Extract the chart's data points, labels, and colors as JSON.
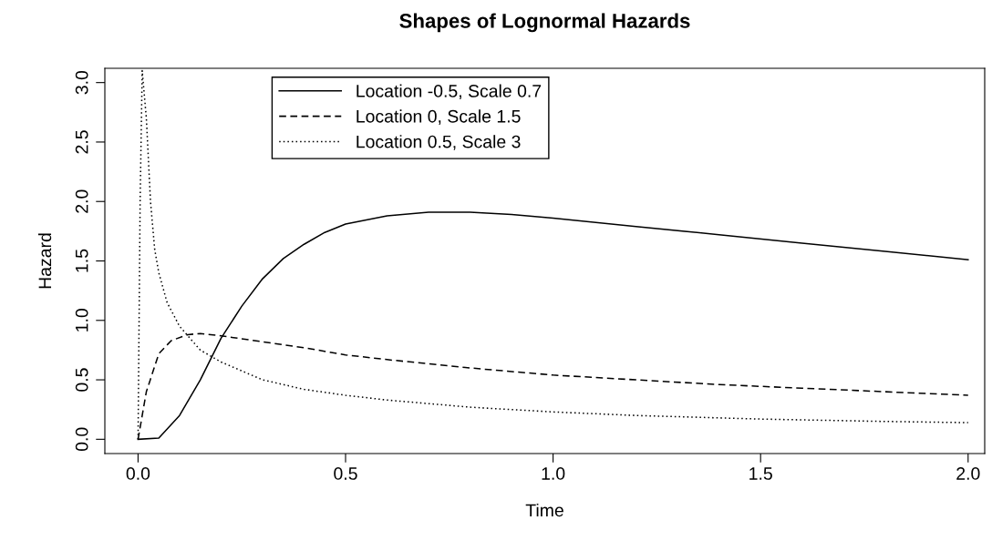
{
  "chart_data": {
    "type": "line",
    "title": "Shapes of Lognormal Hazards",
    "xlabel": "Time",
    "ylabel": "Hazard",
    "xlim": [
      -0.08,
      2.04
    ],
    "ylim": [
      -0.12,
      3.12
    ],
    "xticks": [
      {
        "value": 0,
        "label": "0.0"
      },
      0.5,
      {
        "value": 1,
        "label": "1.0"
      },
      1.5,
      {
        "value": 2,
        "label": "2.0"
      }
    ],
    "yticks": [
      {
        "value": 0,
        "label": "0.0"
      },
      0.5,
      {
        "value": 1,
        "label": "1.0"
      },
      1.5,
      {
        "value": 2,
        "label": "2.0"
      },
      2.5,
      {
        "value": 3,
        "label": "3.0"
      }
    ],
    "grid": false,
    "legend": "top left",
    "marker": "none",
    "series": [
      {
        "name": "Location -0.5, Scale 0.7",
        "color": "#000000",
        "line_style": "solid",
        "x": [
          0,
          0.05,
          0.1,
          0.15,
          0.2,
          0.25,
          0.3,
          0.35,
          0.4,
          0.45,
          0.5,
          0.6,
          0.7,
          0.8,
          0.9,
          1.0,
          1.2,
          1.4,
          1.6,
          1.8,
          2.0
        ],
        "values": [
          0,
          0.01,
          0.2,
          0.5,
          0.85,
          1.12,
          1.35,
          1.52,
          1.64,
          1.74,
          1.81,
          1.88,
          1.91,
          1.91,
          1.89,
          1.86,
          1.79,
          1.72,
          1.65,
          1.58,
          1.51
        ]
      },
      {
        "name": "Location 0, Scale 1.5",
        "color": "#000000",
        "line_style": "dashed",
        "x": [
          0,
          0.02,
          0.05,
          0.08,
          0.12,
          0.15,
          0.2,
          0.3,
          0.4,
          0.5,
          0.6,
          0.8,
          1.0,
          1.2,
          1.4,
          1.6,
          1.8,
          2.0
        ],
        "values": [
          0,
          0.4,
          0.72,
          0.83,
          0.88,
          0.89,
          0.87,
          0.82,
          0.77,
          0.71,
          0.67,
          0.6,
          0.54,
          0.5,
          0.46,
          0.43,
          0.4,
          0.37
        ]
      },
      {
        "name": "Location 0.5, Scale 3",
        "color": "#000000",
        "line_style": "dotted",
        "x": [
          0,
          0.005,
          0.01,
          0.02,
          0.03,
          0.04,
          0.05,
          0.07,
          0.1,
          0.15,
          0.2,
          0.3,
          0.4,
          0.5,
          0.6,
          0.8,
          1.0,
          1.2,
          1.5,
          1.8,
          2.0
        ],
        "values": [
          0,
          2.0,
          3.1,
          2.7,
          2.0,
          1.6,
          1.4,
          1.15,
          0.95,
          0.75,
          0.65,
          0.5,
          0.42,
          0.37,
          0.33,
          0.27,
          0.23,
          0.2,
          0.17,
          0.15,
          0.14
        ]
      }
    ]
  }
}
